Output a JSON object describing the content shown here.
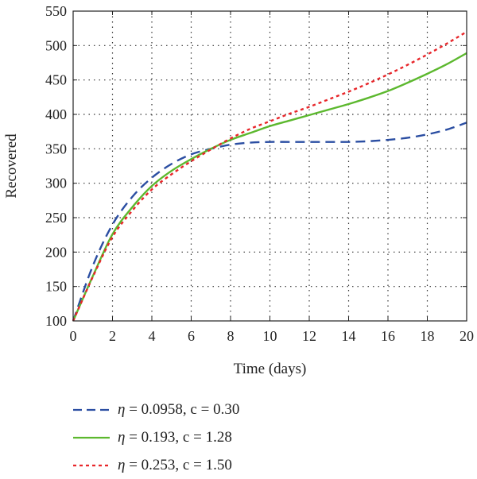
{
  "chart_data": {
    "type": "line",
    "xlabel": "Time (days)",
    "ylabel": "Recovered",
    "xlim": [
      0,
      20
    ],
    "ylim": [
      100,
      550
    ],
    "xticks": [
      0,
      2,
      4,
      6,
      8,
      10,
      12,
      14,
      16,
      18,
      20
    ],
    "yticks": [
      100,
      150,
      200,
      250,
      300,
      350,
      400,
      450,
      500,
      550
    ],
    "grid": "dotted",
    "legend_position": "bottom",
    "x": [
      0,
      1,
      2,
      3,
      4,
      5,
      6,
      7,
      8,
      9,
      10,
      11,
      12,
      13,
      14,
      15,
      16,
      17,
      18,
      19,
      20
    ],
    "series": [
      {
        "name": "η = 0.0958, c = 0.30",
        "eta": "0.0958",
        "c": "0.30",
        "color": "#2b4ea2",
        "dash": "dashed",
        "values": [
          100,
          180,
          240,
          280,
          308,
          328,
          342,
          350,
          356,
          359,
          360,
          360,
          360,
          360,
          360,
          361,
          363,
          366,
          371,
          378,
          388
        ]
      },
      {
        "name": "η = 0.193, c = 1.28",
        "eta": "0.193",
        "c": "1.28",
        "color": "#5cb82e",
        "dash": "solid",
        "values": [
          100,
          165,
          226,
          265,
          296,
          318,
          335,
          350,
          363,
          373,
          383,
          391,
          399,
          407,
          415,
          424,
          434,
          446,
          459,
          473,
          489
        ]
      },
      {
        "name": "η = 0.253, c = 1.50",
        "eta": "0.253",
        "c": "1.50",
        "color": "#e8262a",
        "dash": "dotted",
        "values": [
          100,
          164,
          222,
          260,
          291,
          313,
          332,
          349,
          365,
          379,
          390,
          401,
          411,
          422,
          433,
          445,
          458,
          472,
          487,
          503,
          520
        ]
      }
    ]
  }
}
